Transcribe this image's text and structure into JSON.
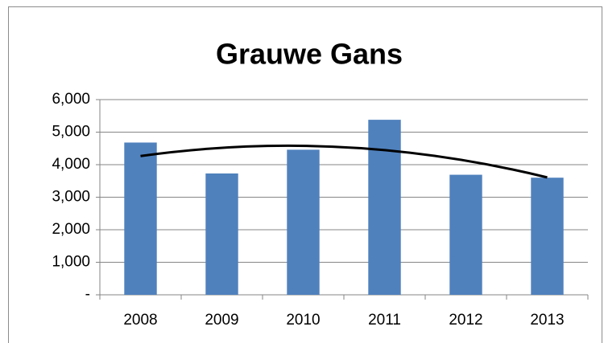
{
  "chart_data": {
    "type": "bar",
    "title": "Grauwe Gans",
    "categories": [
      "2008",
      "2009",
      "2010",
      "2011",
      "2012",
      "2013"
    ],
    "values": [
      4680,
      3730,
      4460,
      5380,
      3690,
      3600
    ],
    "color": "#4f81bd",
    "ylim": [
      0,
      6000
    ],
    "yticks": [
      {
        "value": 0,
        "label": "-"
      },
      {
        "value": 1000,
        "label": "1,000"
      },
      {
        "value": 2000,
        "label": "2,000"
      },
      {
        "value": 3000,
        "label": "3,000"
      },
      {
        "value": 4000,
        "label": "4,000"
      },
      {
        "value": 5000,
        "label": "5,000"
      },
      {
        "value": 6000,
        "label": "6,000"
      }
    ],
    "grid": true,
    "trendline": {
      "type": "polynomial",
      "order": 2,
      "color": "#000000"
    }
  }
}
